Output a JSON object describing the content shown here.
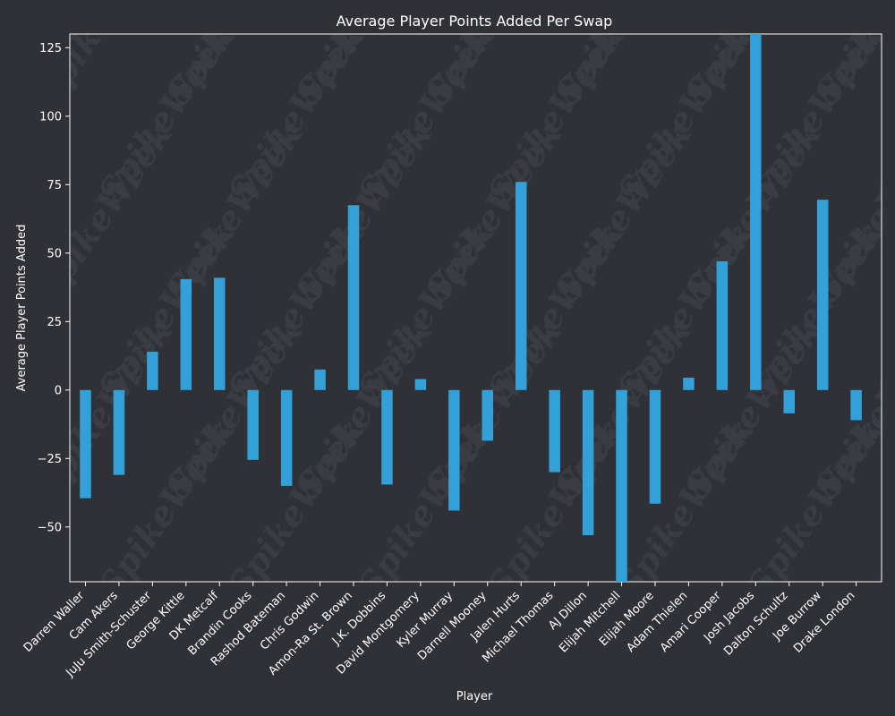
{
  "chart_data": {
    "type": "bar",
    "title": "Average Player Points Added Per Swap",
    "xlabel": "Player",
    "ylabel": "Average Player Points Added",
    "ylim": [
      -70,
      130
    ],
    "yticks": [
      -50,
      -25,
      0,
      25,
      50,
      75,
      100,
      125
    ],
    "ytick_labels": [
      "−50",
      "−25",
      "0",
      "25",
      "50",
      "75",
      "100",
      "125"
    ],
    "bar_color": "#34a0d8",
    "background_color": "#303137",
    "watermark_text": "SpikeWeek",
    "categories": [
      "Darren Waller",
      "Cam Akers",
      "JuJu Smith-Schuster",
      "George Kittle",
      "DK Metcalf",
      "Brandin Cooks",
      "Rashod Bateman",
      "Chris Godwin",
      "Amon-Ra St. Brown",
      "J.K. Dobbins",
      "David Montgomery",
      "Kyler Murray",
      "Darnell Mooney",
      "Jalen Hurts",
      "Michael Thomas",
      "AJ Dillon",
      "Elijah Mitchell",
      "Elijah Moore",
      "Adam Thielen",
      "Amari Cooper",
      "Josh Jacobs",
      "Dalton Schultz",
      "Joe Burrow",
      "Drake London"
    ],
    "values": [
      -39.5,
      -31,
      14,
      40.5,
      41,
      -25.5,
      -35,
      7.5,
      67.5,
      -34.5,
      4,
      -44,
      -18.5,
      76,
      -30,
      -53,
      -70,
      -41.5,
      4.5,
      47,
      130,
      -8.5,
      69.5,
      -11
    ]
  }
}
